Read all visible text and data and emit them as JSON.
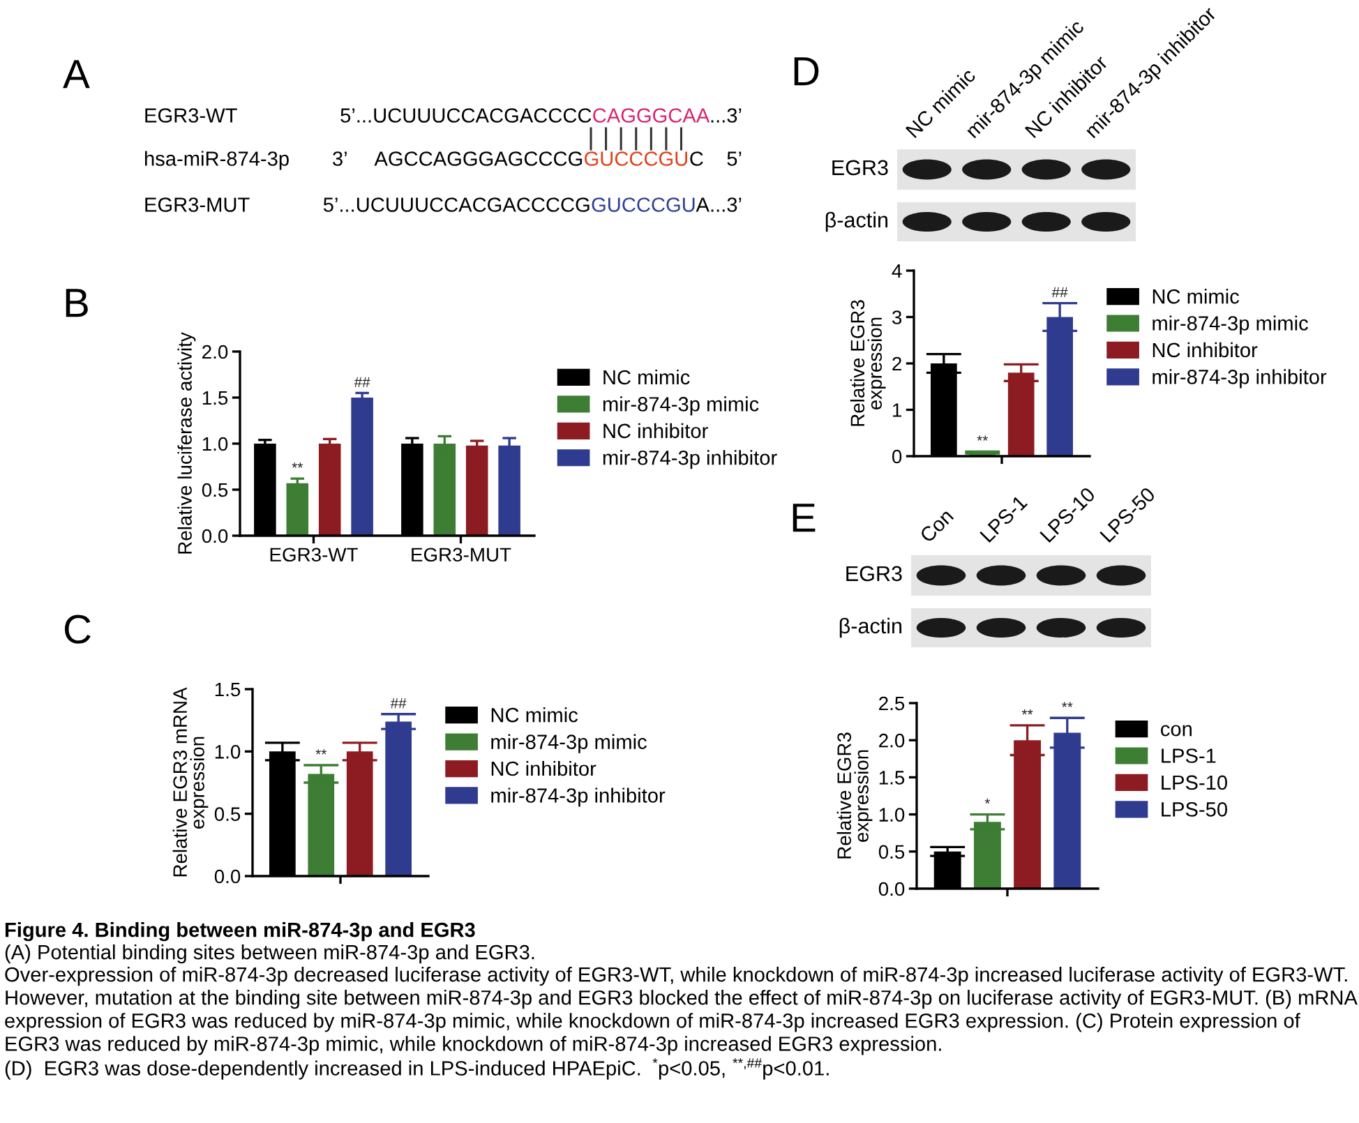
{
  "chart_data": [
    {
      "type": "other",
      "title": "A",
      "categories": [
        "EGR3-WT",
        "hsa-miR-874-3p",
        "EGR3-MUT"
      ],
      "annotations": [
        "5’...UCUUUCCACGACCCC",
        "CAGGGCAA",
        "...3’",
        "3’     AGCCAGGGAGCCCG",
        "GUCCCGU",
        "C    5’",
        "5’...UCUUUCCACGACCCCG",
        "GUCCCGU",
        "A...3’"
      ],
      "colors": [
        "#000000",
        "#d6256f",
        "#000000",
        "#000000",
        "#e0401a",
        "#000000",
        "#000000",
        "#2f3d9a",
        "#000000"
      ]
    },
    {
      "type": "bar",
      "title": "B",
      "categories": [
        "EGR3-WT",
        "EGR3-MUT"
      ],
      "ylabel": "Relative luciferase activity",
      "ylim": [
        0,
        2
      ],
      "yticks": [
        {
          "value": 0,
          "label": "0.0"
        },
        0.5,
        {
          "value": 1,
          "label": "1.0"
        },
        1.5,
        {
          "value": 2,
          "label": "2.0"
        }
      ],
      "legend": "right",
      "series": [
        {
          "name": "NC mimic",
          "color": "#000000",
          "values": [
            1.0,
            1.0
          ],
          "errors": [
            0.04,
            0.06
          ]
        },
        {
          "name": "mir-874-3p mimic",
          "color": "#3d7d34",
          "values": [
            0.57,
            1.0
          ],
          "errors": [
            0.05,
            0.08
          ],
          "value_labels": [
            "**",
            null
          ]
        },
        {
          "name": "NC inhibitor",
          "color": "#8c1c22",
          "values": [
            1.0,
            0.98
          ],
          "errors": [
            0.05,
            0.05
          ]
        },
        {
          "name": "mir-874-3p inhibitor",
          "color": "#2f3b8e",
          "values": [
            1.5,
            0.98
          ],
          "errors": [
            0.05,
            0.08
          ],
          "value_labels": [
            "##",
            null
          ]
        }
      ]
    },
    {
      "type": "bar",
      "title": "C",
      "categories": [
        null
      ],
      "ylabel": "Relative EGR3 mRNA\nexpression",
      "ylim": [
        0,
        1.5
      ],
      "yticks": [
        {
          "value": 0,
          "label": "0.0"
        },
        0.5,
        {
          "value": 1,
          "label": "1.0"
        },
        1.5
      ],
      "legend": "right",
      "series": [
        {
          "name": "NC mimic",
          "color": "#000000",
          "values": [
            1.0
          ],
          "errors": [
            0.07
          ]
        },
        {
          "name": "mir-874-3p mimic",
          "color": "#3d7d34",
          "values": [
            0.82
          ],
          "errors": [
            0.07
          ],
          "value_labels": [
            "**"
          ]
        },
        {
          "name": "NC inhibitor",
          "color": "#8c1c22",
          "values": [
            1.0
          ],
          "errors": [
            0.07
          ]
        },
        {
          "name": "mir-874-3p inhibitor",
          "color": "#2f3b8e",
          "values": [
            1.24
          ],
          "errors": [
            0.06
          ],
          "value_labels": [
            "##"
          ]
        }
      ]
    },
    {
      "type": "other",
      "title": "D",
      "categories": [
        "NC mimic",
        "mir-874-3p mimic",
        "NC inhibitor",
        "mir-874-3p inhibitor"
      ],
      "annotations": [
        "EGR3",
        "β-actin"
      ]
    },
    {
      "type": "bar",
      "categories": [
        null
      ],
      "ylabel": "Relative EGR3\nexpression",
      "ylim": [
        0,
        4
      ],
      "yticks": [
        0,
        1,
        2,
        3,
        4
      ],
      "legend": "right",
      "series": [
        {
          "name": "NC mimic",
          "color": "#000000",
          "values": [
            2.0
          ],
          "errors": [
            0.2
          ]
        },
        {
          "name": "mir-874-3p mimic",
          "color": "#3d7d34",
          "values": [
            0.08
          ],
          "errors": [
            0.02
          ],
          "value_labels": [
            "**"
          ]
        },
        {
          "name": "NC inhibitor",
          "color": "#8c1c22",
          "values": [
            1.8
          ],
          "errors": [
            0.18
          ]
        },
        {
          "name": "mir-874-3p inhibitor",
          "color": "#2f3b8e",
          "values": [
            3.0
          ],
          "errors": [
            0.3
          ],
          "value_labels": [
            "##"
          ]
        }
      ]
    },
    {
      "type": "other",
      "title": "E",
      "categories": [
        "Con",
        "LPS-1",
        "LPS-10",
        "LPS-50"
      ],
      "annotations": [
        "EGR3",
        "β-actin"
      ]
    },
    {
      "type": "bar",
      "categories": [
        null
      ],
      "ylabel": "Relative EGR3\nexpression",
      "ylim": [
        0,
        2.5
      ],
      "yticks": [
        {
          "value": 0,
          "label": "0.0"
        },
        0.5,
        {
          "value": 1,
          "label": "1.0"
        },
        1.5,
        {
          "value": 2,
          "label": "2.0"
        },
        2.5
      ],
      "legend": "right",
      "series": [
        {
          "name": "con",
          "color": "#000000",
          "values": [
            0.5
          ],
          "errors": [
            0.06
          ]
        },
        {
          "name": "LPS-1",
          "color": "#3d7d34",
          "values": [
            0.9
          ],
          "errors": [
            0.1
          ],
          "value_labels": [
            "*"
          ]
        },
        {
          "name": "LPS-10",
          "color": "#8c1c22",
          "values": [
            2.0
          ],
          "errors": [
            0.2
          ],
          "value_labels": [
            "**"
          ]
        },
        {
          "name": "LPS-50",
          "color": "#2f3b8e",
          "values": [
            2.1
          ],
          "errors": [
            0.2
          ],
          "value_labels": [
            "**"
          ]
        }
      ]
    },
    {
      "type": "other",
      "title": "Figure 4. Binding between miR-874-3p and EGR3",
      "annotations": [
        "(A) Potential binding sites between miR-874-3p and EGR3.",
        "Over-expression of miR-874-3p decreased luciferase activity of EGR3-WT, while knockdown of miR-874-3p increased luciferase activity of EGR3-WT. However, mutation at the binding site between miR-874-3p and EGR3 blocked the effect of miR-874-3p on luciferase activity of EGR3-MUT. (B) mRNA expression of EGR3 was reduced by miR-874-3p mimic, while knockdown of miR-874-3p increased EGR3 expression. (C) Protein expression of EGR3 was reduced by miR-874-3p mimic, while knockdown of miR-874-3p increased EGR3 expression.",
        "(D)  EGR3 was dose-dependently increased in LPS-induced HPAEpiC. $^{*}$p<0.05, $^{**,##}$p<0.01."
      ]
    }
  ]
}
